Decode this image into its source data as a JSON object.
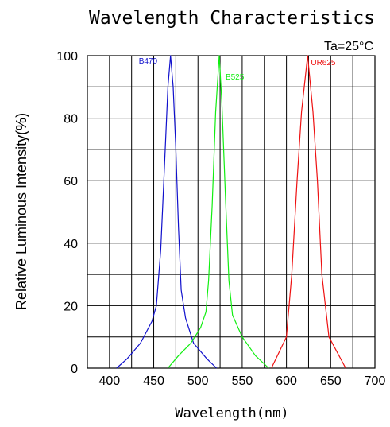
{
  "chart_data": {
    "type": "line",
    "title": "Wavelength Characteristics",
    "xlabel": "Wavelength(nm)",
    "ylabel": "Relative Luminous Intensity(%)",
    "annotation": "Ta=25°C",
    "xlim": [
      375,
      700
    ],
    "ylim": [
      0,
      100
    ],
    "xticks": [
      400,
      450,
      500,
      550,
      600,
      650,
      700
    ],
    "yticks": [
      0,
      20,
      40,
      60,
      80,
      100
    ],
    "grid": true,
    "series": [
      {
        "name": "B470",
        "color": "#1010cc",
        "points": [
          [
            408,
            0
          ],
          [
            420,
            3
          ],
          [
            435,
            8
          ],
          [
            448,
            15
          ],
          [
            453,
            20
          ],
          [
            458,
            38
          ],
          [
            463,
            70
          ],
          [
            466,
            90
          ],
          [
            469,
            100
          ],
          [
            472,
            90
          ],
          [
            475,
            70
          ],
          [
            478,
            45
          ],
          [
            481,
            25
          ],
          [
            486,
            16
          ],
          [
            495,
            8
          ],
          [
            510,
            3
          ],
          [
            521,
            0
          ]
        ]
      },
      {
        "name": "B525",
        "color": "#11ee11",
        "points": [
          [
            466,
            0
          ],
          [
            478,
            4
          ],
          [
            492,
            8
          ],
          [
            503,
            13
          ],
          [
            509,
            18
          ],
          [
            512,
            28
          ],
          [
            516,
            52
          ],
          [
            520,
            82
          ],
          [
            524,
            100
          ],
          [
            527,
            85
          ],
          [
            531,
            55
          ],
          [
            535,
            28
          ],
          [
            539,
            17
          ],
          [
            550,
            10
          ],
          [
            565,
            4
          ],
          [
            580,
            0
          ]
        ]
      },
      {
        "name": "UR625",
        "color": "#ee1111",
        "points": [
          [
            583,
            0
          ],
          [
            600,
            10
          ],
          [
            606,
            30
          ],
          [
            612,
            60
          ],
          [
            617,
            82
          ],
          [
            624,
            100
          ],
          [
            630,
            82
          ],
          [
            635,
            60
          ],
          [
            640,
            30
          ],
          [
            648,
            10
          ],
          [
            667,
            0
          ]
        ]
      }
    ]
  }
}
